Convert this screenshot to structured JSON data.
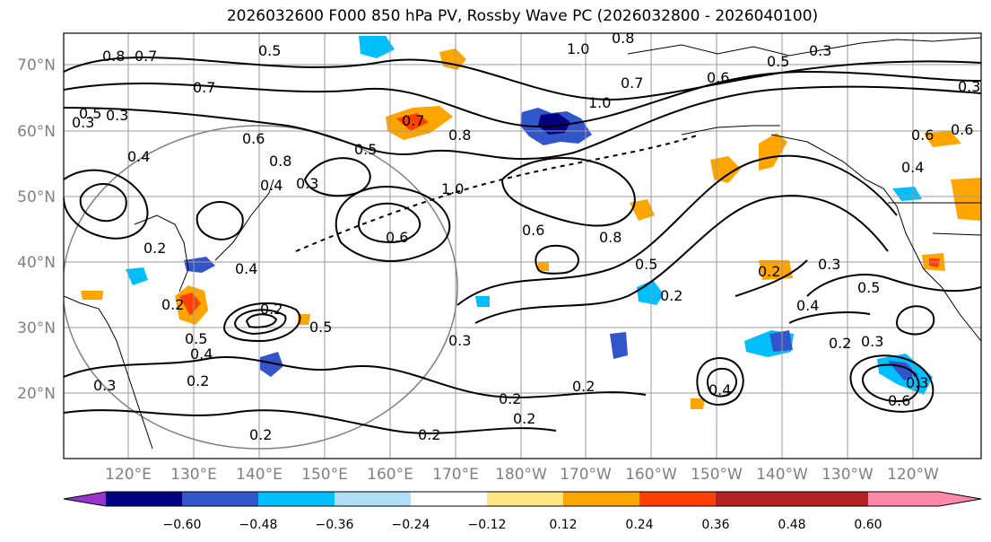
{
  "title": "2026032600 F000 850 hPa PV, Rossby Wave PC (2026032800 - 2026040100)",
  "map": {
    "lat_labels": [
      "70°N",
      "60°N",
      "50°N",
      "40°N",
      "30°N",
      "20°N"
    ],
    "lon_labels": [
      "120°E",
      "130°E",
      "140°E",
      "150°E",
      "160°E",
      "170°E",
      "180°W",
      "170°W",
      "160°W",
      "150°W",
      "140°W",
      "130°W",
      "120°W"
    ],
    "contour_labels": [
      "0.8",
      "0.7",
      "0.7",
      "0.5",
      "0.3",
      "0.4",
      "0.3",
      "0.5",
      "0.6",
      "0.8",
      "0.4",
      "0.3",
      "0.7",
      "0.5",
      "1.0",
      "0.8",
      "1.0",
      "1.0",
      "0.6",
      "0.8",
      "0.5",
      "0.6",
      "0.8",
      "0.3",
      "0.5",
      "0.6",
      "0.4",
      "0.2",
      "0.2",
      "0.3",
      "0.5",
      "0.3",
      "0.4",
      "0.2",
      "0.3",
      "0.6",
      "0.2",
      "0.4",
      "0.2",
      "0.2",
      "0.2",
      "0.2",
      "0.2",
      "0.5",
      "0.4",
      "0.2",
      "0.3",
      "0.2",
      "0.3",
      "0.2",
      "0.6",
      "0.5",
      "0.4",
      "0.3",
      "0.6",
      "0.7"
    ]
  },
  "colorbar": {
    "ticks": [
      "−0.60",
      "−0.48",
      "−0.36",
      "−0.24",
      "−0.12",
      "0.12",
      "0.24",
      "0.36",
      "0.48",
      "0.60"
    ],
    "colors": [
      "#9933cc",
      "#000080",
      "#3355cc",
      "#00bfff",
      "#b0e0f8",
      "#ffffff",
      "#ffe680",
      "#ffa500",
      "#ff4000",
      "#b22222",
      "#ff88aa"
    ]
  }
}
